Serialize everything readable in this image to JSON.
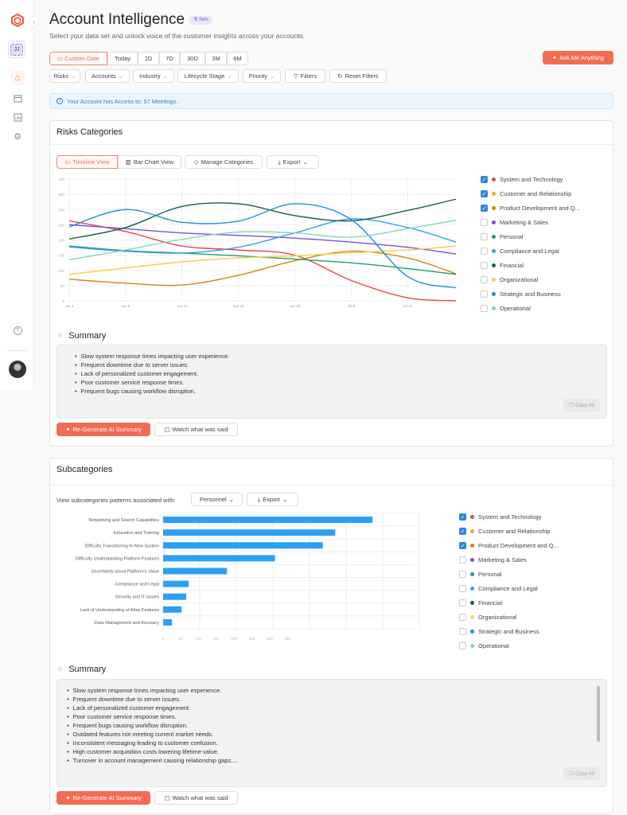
{
  "sidebar": {
    "avatar_initials": "JJ",
    "items": [
      {
        "icon": "home-icon"
      },
      {
        "icon": "calendar-icon"
      },
      {
        "icon": "chart-icon"
      },
      {
        "icon": "gear-icon"
      }
    ]
  },
  "header": {
    "title": "Account Intelligence",
    "badge": "Sets",
    "subtitle": "Select your data set and unlock voice of the customer insights across your accounts",
    "ask_button": "Ask Me Anything"
  },
  "date_ranges": [
    "Custom Date",
    "Today",
    "1D",
    "7D",
    "30D",
    "3M",
    "6M"
  ],
  "filters": [
    "Risks",
    "Accounts",
    "Industry",
    "Lifecycle Stage",
    "Priority"
  ],
  "filters_button": "Filters",
  "reset_button": "Reset Filters",
  "info": "Your Account has Access to: 57 Meetings.",
  "accent": "#f26b53",
  "risks": {
    "title": "Risks Categories",
    "views": [
      "Timeline View",
      "Bar Chart View"
    ],
    "manage": "Manage Categories",
    "export": "Export",
    "summary_title": "Summary",
    "summary": [
      "Slow system response times impacting user experience.",
      "Frequent downtime due to server issues.",
      "Lack of personalized customer engagement.",
      "Poor customer service response times.",
      "Frequent bugs causing workflow disruption."
    ],
    "copy": "Copy All",
    "regen": "Re-Generate AI Summary",
    "watch": "Watch what was said"
  },
  "legend": [
    {
      "name": "System and Technology",
      "color": "#e5483f",
      "checked": true
    },
    {
      "name": "Customer and Relationship",
      "color": "#f2a93b",
      "checked": true
    },
    {
      "name": "Product Development and Q...",
      "color": "#d4850a",
      "checked": true
    },
    {
      "name": "Marketing & Sales",
      "color": "#7b4fe0",
      "checked": false
    },
    {
      "name": "Personal",
      "color": "#1f9e6e",
      "checked": false
    },
    {
      "name": "Compliance and Legal",
      "color": "#2ea0f0",
      "checked": false
    },
    {
      "name": "Financial",
      "color": "#155e4a",
      "checked": false
    },
    {
      "name": "Organizational",
      "color": "#f7d35a",
      "checked": false
    },
    {
      "name": "Strategic and Business",
      "color": "#1c8fd0",
      "checked": false
    },
    {
      "name": "Operational",
      "color": "#7fd9b8",
      "checked": false
    }
  ],
  "subcategories": {
    "title": "Subcategories",
    "prompt": "View subcategories patterns associated with:",
    "selected": "Personnel",
    "export": "Export",
    "summary_title": "Summary",
    "summary": [
      "Slow system response times impacting user experience.",
      "Frequent downtime due to server issues.",
      "Lack of personalized customer engagement.",
      "Poor customer service response times.",
      "Frequent bugs causing workflow disruption.",
      "Outdated features not meeting current market needs.",
      "Inconsistent messaging leading to customer confusion.",
      "High customer acquisition costs lowering lifetime value.",
      "Turnover in account management causing relationship gaps...."
    ],
    "copy": "Copy All",
    "regen": "Re-Generate AI Summary",
    "watch": "Watch what was said"
  },
  "chart_data": [
    {
      "type": "line",
      "ylim": [
        0,
        400
      ],
      "yticks": [
        0,
        50,
        100,
        150,
        200,
        250,
        300,
        350,
        400
      ],
      "x": [
        "Jun 1",
        "Jun 8",
        "Jun 15",
        "Jun 22",
        "Jun 29",
        "Jul 6",
        "Jul 13",
        "Jul 19"
      ],
      "xticks": [
        "Jun 1",
        "Jun 8",
        "Jun 15",
        "Jun 22",
        "Jun 29",
        "Jul 6",
        "Jul 13"
      ],
      "grid": true,
      "series": [
        {
          "name": "System and Technology",
          "values": [
            263,
            228,
            180,
            167,
            150,
            67,
            10,
            0
          ]
        },
        {
          "name": "Customer and Relationship",
          "values": [
            87,
            108,
            128,
            141,
            148,
            158,
            167,
            180
          ]
        },
        {
          "name": "Product Development and Q...",
          "values": [
            71,
            58,
            52,
            84,
            132,
            163,
            141,
            89
          ]
        },
        {
          "name": "Marketing & Sales",
          "values": [
            250,
            237,
            223,
            215,
            206,
            193,
            176,
            154
          ]
        },
        {
          "name": "Personal",
          "values": [
            180,
            165,
            157,
            148,
            137,
            125,
            106,
            87
          ]
        },
        {
          "name": "Compliance and Legal",
          "values": [
            177,
            163,
            157,
            176,
            223,
            269,
            241,
            193
          ]
        },
        {
          "name": "Financial",
          "values": [
            203,
            241,
            310,
            319,
            280,
            263,
            297,
            334
          ]
        },
        {
          "name": "Organizational",
          "values": [
            87,
            108,
            128,
            141,
            148,
            158,
            167,
            180
          ]
        },
        {
          "name": "Strategic and Business",
          "values": [
            243,
            300,
            258,
            262,
            319,
            267,
            80,
            43
          ]
        },
        {
          "name": "Operational",
          "values": [
            135,
            167,
            202,
            226,
            223,
            209,
            237,
            265
          ]
        }
      ]
    },
    {
      "type": "bar",
      "orientation": "horizontal",
      "xticks": [
        0,
        50,
        100,
        150,
        200,
        250,
        300,
        350
      ],
      "grid": true,
      "color": "#2aa0f5",
      "categories": [
        "Networking and Search Capabilities",
        "Education and Training",
        "Difficulty Transitioning to New System",
        "Difficulty Understanding Platform Features",
        "Uncertainty about Platform's Value",
        "Compliance and Legal",
        "Security and IT Issues",
        "Lack of Understanding of Atlas Features",
        "Data Management and Accuracy"
      ],
      "values": [
        590,
        485,
        450,
        315,
        180,
        72,
        65,
        52,
        25
      ]
    }
  ]
}
